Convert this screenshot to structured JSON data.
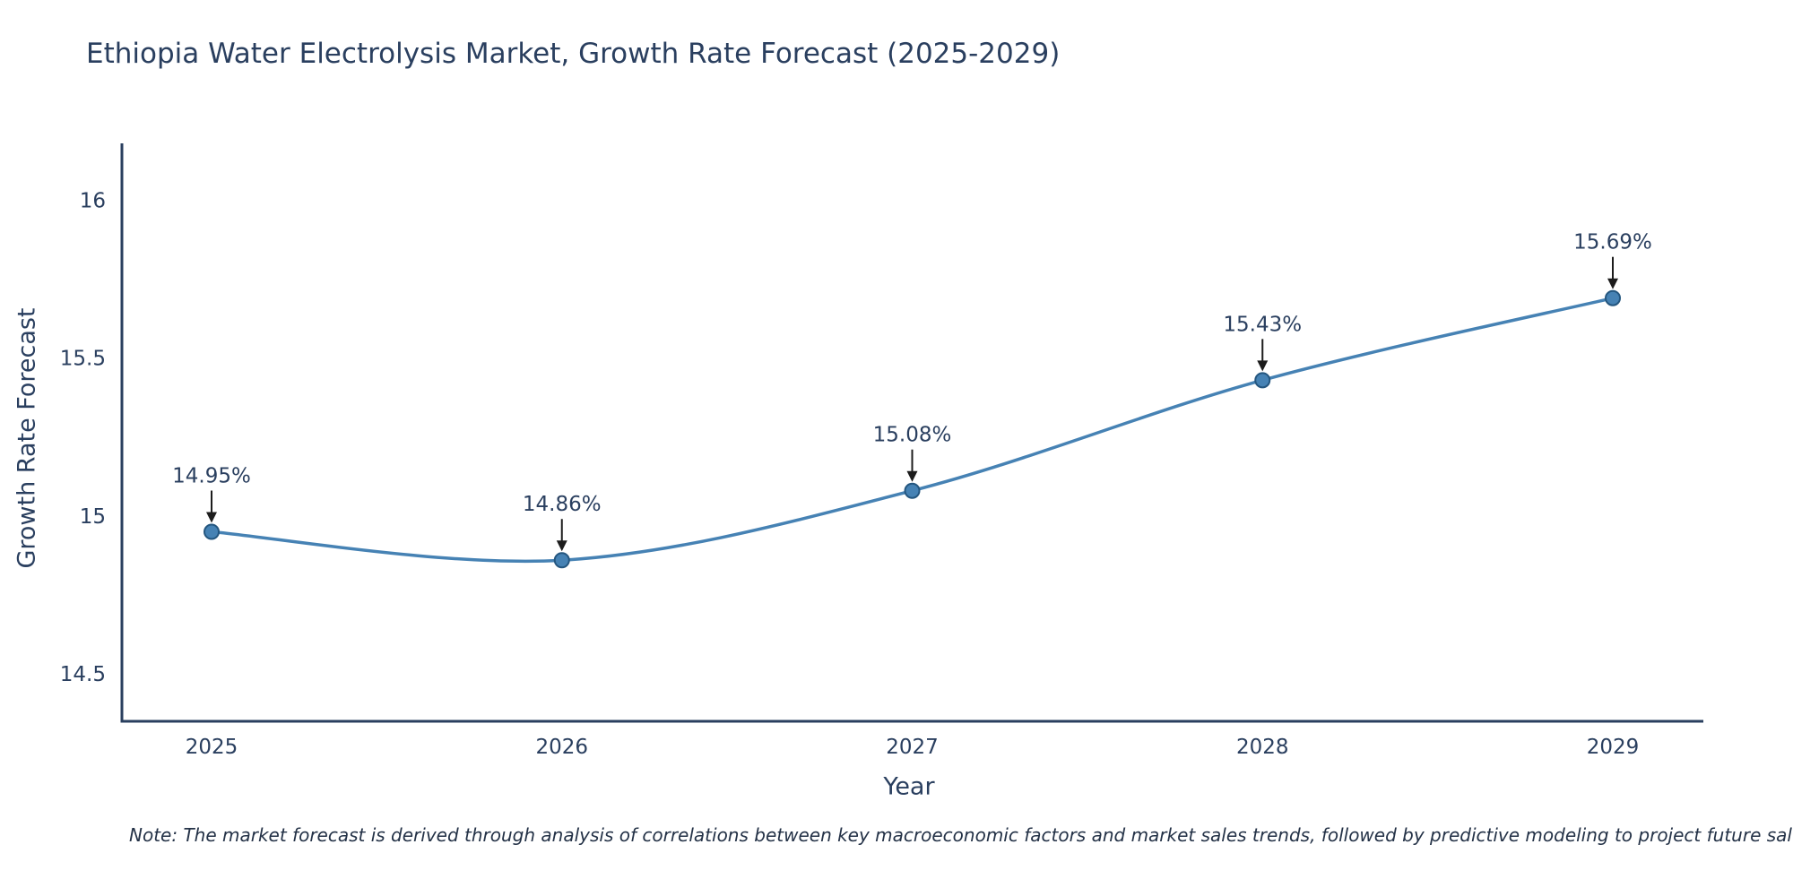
{
  "header": {
    "title": "Ethiopia Water Electrolysis Market, Growth Rate Forecast (2025-2029)"
  },
  "footer": {
    "note": "Note: The market forecast is derived through analysis of correlations between key macroeconomic factors and market sales trends, followed by predictive modeling to project future sal"
  },
  "chart_data": {
    "type": "line",
    "title": "Ethiopia Water Electrolysis Market, Growth Rate Forecast (2025-2029)",
    "xlabel": "Year",
    "ylabel": "Growth Rate Forecast",
    "categories": [
      "2025",
      "2026",
      "2027",
      "2028",
      "2029"
    ],
    "series": [
      {
        "name": "Growth Rate Forecast",
        "values": [
          14.95,
          14.86,
          15.08,
          15.43,
          15.69
        ]
      }
    ],
    "point_labels": [
      "14.95%",
      "14.86%",
      "15.08%",
      "15.43%",
      "15.69%"
    ],
    "yticks": [
      14.5,
      15,
      15.5,
      16
    ],
    "ylim": [
      14.35,
      16.18
    ],
    "grid": false,
    "legend_position": "none",
    "line_color": "#4682b4",
    "marker_color": "#4682b4",
    "marker_edge_color": "#24567f",
    "axis_color": "#2a3f5f",
    "annotation_arrow_color": "#1c1c1c",
    "text_color": "#2a3f5f"
  }
}
